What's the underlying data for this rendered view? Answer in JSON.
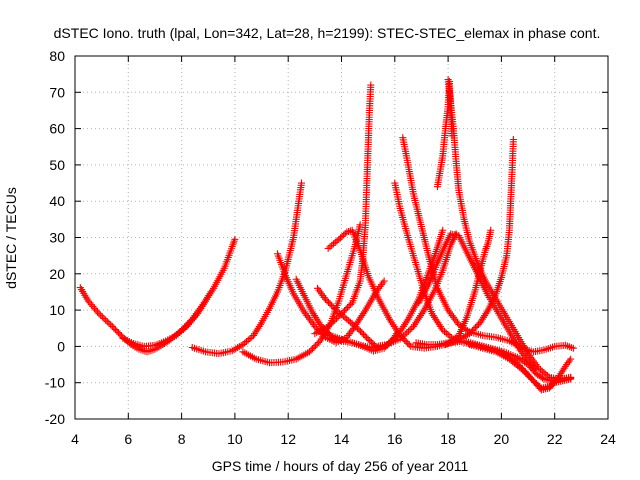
{
  "chart_data": {
    "type": "scatter",
    "title": "dSTEC Iono. truth (lpal, Lon=342, Lat=28, h=2199): STEC-STEC_elemax in phase cont.",
    "xlabel": "GPS time / hours of day 256 of year 2011",
    "ylabel": "dSTEC  / TECUs",
    "xlim": [
      4,
      24
    ],
    "ylim": [
      -20,
      80
    ],
    "xticks": [
      4,
      6,
      8,
      10,
      12,
      14,
      16,
      18,
      20,
      22,
      24
    ],
    "yticks": [
      -20,
      -10,
      0,
      10,
      20,
      30,
      40,
      50,
      60,
      70,
      80
    ],
    "x_tick_labels": [
      "4",
      "6",
      "8",
      "10",
      "12",
      "14",
      "16",
      "18",
      "20",
      "22",
      "24"
    ],
    "y_tick_labels": [
      "-20",
      "-10",
      "0",
      "10",
      "20",
      "30",
      "40",
      "50",
      "60",
      "70",
      "80"
    ],
    "grid": true,
    "marker": "+",
    "color": "#ff0000",
    "series": [
      {
        "points": [
          [
            4.2,
            16.2
          ],
          [
            4.5,
            12.5
          ],
          [
            4.9,
            9.0
          ],
          [
            5.4,
            5.5
          ],
          [
            5.8,
            2.5
          ],
          [
            6.1,
            0.5
          ],
          [
            6.4,
            -0.8
          ],
          [
            6.7,
            -1.5
          ],
          [
            7.0,
            -0.8
          ],
          [
            7.3,
            0.5
          ],
          [
            7.6,
            2.0
          ],
          [
            8.0,
            4.5
          ],
          [
            8.4,
            7.5
          ],
          [
            8.8,
            11.5
          ],
          [
            9.2,
            16.0
          ],
          [
            9.6,
            21.5
          ],
          [
            9.9,
            27.5
          ],
          [
            10.0,
            29.5
          ]
        ]
      },
      {
        "points": [
          [
            5.8,
            2.2
          ],
          [
            6.2,
            0.8
          ],
          [
            6.6,
            0.0
          ],
          [
            7.0,
            0.3
          ],
          [
            7.4,
            1.5
          ],
          [
            7.8,
            3.0
          ],
          [
            8.2,
            5.5
          ],
          [
            8.6,
            9.0
          ],
          [
            8.9,
            12.5
          ],
          [
            9.1,
            15.0
          ]
        ]
      },
      {
        "points": [
          [
            8.4,
            -0.3
          ],
          [
            8.9,
            -1.5
          ],
          [
            9.4,
            -2.0
          ],
          [
            9.9,
            -1.2
          ],
          [
            10.3,
            0.5
          ],
          [
            10.7,
            3.0
          ],
          [
            11.0,
            6.5
          ],
          [
            11.3,
            10.5
          ],
          [
            11.6,
            15.0
          ],
          [
            11.9,
            21.0
          ],
          [
            12.2,
            30.0
          ],
          [
            12.4,
            40.0
          ],
          [
            12.5,
            45.0
          ]
        ]
      },
      {
        "points": [
          [
            10.3,
            -1.5
          ],
          [
            10.8,
            -3.5
          ],
          [
            11.3,
            -4.5
          ],
          [
            11.8,
            -4.3
          ],
          [
            12.3,
            -3.5
          ],
          [
            12.8,
            -1.5
          ],
          [
            13.2,
            1.5
          ],
          [
            13.6,
            6.5
          ],
          [
            13.9,
            12.5
          ],
          [
            14.2,
            20.0
          ],
          [
            14.5,
            27.5
          ],
          [
            14.7,
            33.5
          ]
        ]
      },
      {
        "points": [
          [
            11.6,
            25.5
          ],
          [
            11.9,
            19.5
          ],
          [
            12.2,
            14.5
          ],
          [
            12.6,
            9.5
          ],
          [
            13.0,
            5.5
          ],
          [
            13.4,
            2.5
          ],
          [
            13.8,
            1.0
          ],
          [
            14.2,
            2.5
          ],
          [
            14.5,
            5.5
          ],
          [
            14.9,
            10.0
          ],
          [
            15.3,
            15.0
          ],
          [
            15.6,
            18.0
          ]
        ]
      },
      {
        "points": [
          [
            12.3,
            18.5
          ],
          [
            12.6,
            14.0
          ],
          [
            12.9,
            9.5
          ],
          [
            13.2,
            6.0
          ],
          [
            13.6,
            3.0
          ],
          [
            14.0,
            1.5
          ],
          [
            14.4,
            1.0
          ],
          [
            14.8,
            0.0
          ],
          [
            15.2,
            -1.3
          ],
          [
            15.6,
            -0.5
          ],
          [
            15.9,
            1.5
          ],
          [
            16.1,
            4.0
          ]
        ]
      },
      {
        "points": [
          [
            13.1,
            16.0
          ],
          [
            13.4,
            13.0
          ],
          [
            13.8,
            10.0
          ],
          [
            14.2,
            7.5
          ],
          [
            14.6,
            5.0
          ],
          [
            15.0,
            2.0
          ],
          [
            15.3,
            0.0
          ],
          [
            15.7,
            0.5
          ],
          [
            16.1,
            3.0
          ],
          [
            16.5,
            7.5
          ],
          [
            16.9,
            13.0
          ],
          [
            17.2,
            19.0
          ],
          [
            17.5,
            25.0
          ],
          [
            17.8,
            32.0
          ]
        ]
      },
      {
        "points": [
          [
            13.2,
            5.0
          ],
          [
            13.6,
            3.0
          ],
          [
            14.0,
            2.0
          ],
          [
            14.4,
            1.0
          ],
          [
            14.9,
            0.0
          ],
          [
            15.3,
            -0.5
          ],
          [
            15.7,
            0.5
          ],
          [
            16.2,
            2.0
          ],
          [
            16.7,
            5.5
          ],
          [
            17.1,
            10.0
          ],
          [
            17.5,
            15.5
          ],
          [
            17.8,
            21.0
          ],
          [
            18.1,
            28.0
          ],
          [
            18.3,
            31.0
          ]
        ]
      },
      {
        "points": [
          [
            13.5,
            27.0
          ],
          [
            13.9,
            29.5
          ],
          [
            14.2,
            31.5
          ],
          [
            14.4,
            32.0
          ],
          [
            14.7,
            26.5
          ],
          [
            15.0,
            19.5
          ],
          [
            15.4,
            13.0
          ],
          [
            15.8,
            7.5
          ],
          [
            16.2,
            3.0
          ],
          [
            16.6,
            0.0
          ],
          [
            17.1,
            -0.5
          ],
          [
            17.6,
            0.0
          ],
          [
            18.1,
            1.0
          ],
          [
            18.6,
            1.5
          ],
          [
            19.1,
            0.5
          ],
          [
            19.6,
            -0.5
          ],
          [
            20.1,
            -1.5
          ],
          [
            20.6,
            -3.0
          ],
          [
            21.0,
            -5.0
          ],
          [
            21.3,
            -7.5
          ],
          [
            21.6,
            -9.0
          ],
          [
            21.9,
            -9.5
          ],
          [
            22.2,
            -9.0
          ],
          [
            22.6,
            -8.7
          ]
        ]
      },
      {
        "points": [
          [
            13.0,
            3.5
          ],
          [
            13.5,
            5.5
          ],
          [
            14.0,
            9.0
          ],
          [
            14.4,
            12.0
          ],
          [
            14.7,
            18.0
          ],
          [
            14.8,
            24.0
          ],
          [
            14.9,
            34.0
          ],
          [
            14.95,
            45.0
          ],
          [
            15.0,
            55.0
          ],
          [
            15.05,
            65.0
          ],
          [
            15.1,
            72.0
          ]
        ]
      },
      {
        "points": [
          [
            16.0,
            45.0
          ],
          [
            16.2,
            38.0
          ],
          [
            16.5,
            30.0
          ],
          [
            16.8,
            22.5
          ],
          [
            17.1,
            15.0
          ],
          [
            17.4,
            9.0
          ],
          [
            17.8,
            4.5
          ],
          [
            18.2,
            2.0
          ],
          [
            18.6,
            1.0
          ],
          [
            19.0,
            0.5
          ],
          [
            19.5,
            -0.5
          ],
          [
            20.0,
            -1.5
          ],
          [
            20.5,
            -4.0
          ],
          [
            20.9,
            -7.0
          ],
          [
            21.2,
            -9.5
          ],
          [
            21.5,
            -11.5
          ],
          [
            21.8,
            -11.0
          ],
          [
            22.1,
            -9.0
          ],
          [
            22.4,
            -5.5
          ],
          [
            22.6,
            -3.5
          ]
        ]
      },
      {
        "points": [
          [
            16.3,
            57.5
          ],
          [
            16.5,
            50.0
          ],
          [
            16.7,
            42.0
          ],
          [
            17.0,
            33.0
          ],
          [
            17.3,
            24.0
          ],
          [
            17.6,
            16.0
          ],
          [
            18.0,
            10.0
          ],
          [
            18.4,
            6.0
          ],
          [
            18.8,
            4.0
          ],
          [
            19.3,
            3.0
          ],
          [
            19.8,
            2.5
          ],
          [
            20.3,
            1.5
          ],
          [
            20.8,
            -0.5
          ],
          [
            21.2,
            -1.5
          ],
          [
            21.6,
            -1.0
          ],
          [
            22.0,
            0.0
          ],
          [
            22.4,
            0.3
          ],
          [
            22.7,
            -0.5
          ]
        ]
      },
      {
        "points": [
          [
            18.0,
            73.5
          ],
          [
            18.1,
            67.0
          ],
          [
            18.2,
            60.0
          ],
          [
            18.3,
            51.0
          ],
          [
            18.4,
            43.0
          ],
          [
            18.6,
            35.0
          ],
          [
            18.8,
            29.0
          ],
          [
            19.1,
            23.0
          ],
          [
            19.4,
            18.0
          ],
          [
            19.8,
            13.0
          ],
          [
            20.2,
            8.0
          ],
          [
            20.6,
            3.0
          ],
          [
            21.0,
            -2.0
          ],
          [
            21.4,
            -6.0
          ],
          [
            21.8,
            -8.5
          ],
          [
            22.2,
            -9.0
          ],
          [
            22.6,
            -8.5
          ]
        ]
      },
      {
        "points": [
          [
            17.6,
            44.0
          ],
          [
            17.8,
            52.5
          ],
          [
            17.9,
            60.0
          ],
          [
            18.0,
            66.0
          ],
          [
            18.05,
            73.0
          ],
          [
            18.1,
            65.0
          ],
          [
            18.15,
            58.0
          ]
        ]
      },
      {
        "points": [
          [
            16.9,
            12.0
          ],
          [
            17.3,
            17.5
          ],
          [
            17.6,
            23.0
          ],
          [
            17.9,
            28.0
          ],
          [
            18.1,
            31.0
          ],
          [
            18.4,
            30.5
          ],
          [
            18.7,
            26.0
          ],
          [
            19.1,
            20.0
          ],
          [
            19.5,
            14.0
          ],
          [
            19.9,
            9.0
          ],
          [
            20.3,
            4.0
          ],
          [
            20.7,
            -1.0
          ],
          [
            21.0,
            -4.0
          ],
          [
            21.3,
            -6.5
          ]
        ]
      },
      {
        "points": [
          [
            16.8,
            1.0
          ],
          [
            17.2,
            0.5
          ],
          [
            17.6,
            0.5
          ],
          [
            18.0,
            1.0
          ],
          [
            18.4,
            3.0
          ],
          [
            18.7,
            8.0
          ],
          [
            19.0,
            15.0
          ],
          [
            19.2,
            21.0
          ],
          [
            19.4,
            26.5
          ],
          [
            19.5,
            28.5
          ],
          [
            19.6,
            32.0
          ]
        ]
      },
      {
        "points": [
          [
            17.9,
            0.5
          ],
          [
            18.3,
            1.5
          ],
          [
            18.8,
            3.5
          ],
          [
            19.2,
            6.5
          ],
          [
            19.5,
            10.0
          ],
          [
            19.8,
            14.5
          ],
          [
            20.0,
            19.0
          ],
          [
            20.2,
            25.0
          ],
          [
            20.3,
            32.0
          ],
          [
            20.35,
            40.0
          ],
          [
            20.4,
            48.0
          ],
          [
            20.45,
            57.0
          ]
        ]
      },
      {
        "points": [
          [
            18.8,
            0.5
          ],
          [
            19.3,
            -0.5
          ],
          [
            19.8,
            -1.5
          ],
          [
            20.3,
            -3.5
          ],
          [
            20.8,
            -6.5
          ],
          [
            21.2,
            -9.5
          ],
          [
            21.5,
            -12.0
          ],
          [
            21.8,
            -11.5
          ],
          [
            22.0,
            -10.0
          ],
          [
            22.3,
            -9.5
          ],
          [
            22.6,
            -9.0
          ]
        ]
      }
    ]
  }
}
